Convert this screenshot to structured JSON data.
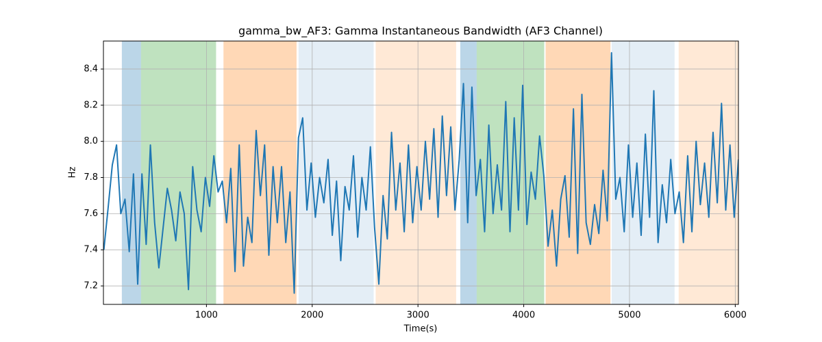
{
  "chart_data": {
    "type": "line",
    "title": "gamma_bw_AF3: Gamma Instantaneous Bandwidth (AF3 Channel)",
    "xlabel": "Time(s)",
    "ylabel": "Hz",
    "xlim": [
      26,
      6030
    ],
    "ylim": [
      7.098,
      8.555
    ],
    "xticks": [
      1000,
      2000,
      3000,
      4000,
      5000,
      6000
    ],
    "yticks": [
      7.2,
      7.4,
      7.6,
      7.8,
      {
        "value": 8,
        "label": "8.0"
      },
      8.2,
      8.4
    ],
    "grid": true,
    "spans": [
      {
        "start": 200,
        "end": 381,
        "color": "rgba(31,119,180,0.3)"
      },
      {
        "start": 381,
        "end": 1091,
        "color": "rgba(44,160,44,0.3)"
      },
      {
        "start": 1161,
        "end": 1852,
        "color": "rgba(255,127,14,0.3)"
      },
      {
        "start": 1871,
        "end": 2581,
        "color": "rgba(31,119,180,0.12)"
      },
      {
        "start": 2600,
        "end": 3361,
        "color": "rgba(255,127,14,0.17)"
      },
      {
        "start": 3400,
        "end": 3555,
        "color": "rgba(31,119,180,0.3)"
      },
      {
        "start": 3555,
        "end": 4194,
        "color": "rgba(44,160,44,0.3)"
      },
      {
        "start": 4207,
        "end": 4820,
        "color": "rgba(255,127,14,0.3)"
      },
      {
        "start": 4832,
        "end": 5426,
        "color": "rgba(31,119,180,0.12)"
      },
      {
        "start": 5465,
        "end": 6030,
        "color": "rgba(255,127,14,0.17)"
      }
    ],
    "x": [
      30,
      70,
      110,
      150,
      190,
      230,
      270,
      310,
      350,
      390,
      430,
      470,
      510,
      550,
      590,
      630,
      670,
      710,
      750,
      790,
      830,
      870,
      910,
      950,
      990,
      1030,
      1070,
      1110,
      1150,
      1190,
      1230,
      1270,
      1310,
      1350,
      1390,
      1430,
      1470,
      1510,
      1550,
      1590,
      1630,
      1670,
      1710,
      1750,
      1790,
      1830,
      1870,
      1910,
      1950,
      1990,
      2030,
      2070,
      2110,
      2150,
      2190,
      2230,
      2270,
      2310,
      2350,
      2390,
      2430,
      2470,
      2510,
      2550,
      2590,
      2630,
      2670,
      2710,
      2750,
      2790,
      2830,
      2870,
      2910,
      2950,
      2990,
      3030,
      3070,
      3110,
      3150,
      3190,
      3230,
      3270,
      3310,
      3350,
      3390,
      3430,
      3470,
      3510,
      3550,
      3590,
      3630,
      3670,
      3710,
      3750,
      3790,
      3830,
      3870,
      3910,
      3950,
      3990,
      4030,
      4070,
      4110,
      4150,
      4190,
      4230,
      4270,
      4310,
      4350,
      4390,
      4430,
      4470,
      4510,
      4550,
      4590,
      4630,
      4670,
      4710,
      4750,
      4790,
      4830,
      4870,
      4910,
      4950,
      4990,
      5030,
      5070,
      5110,
      5150,
      5190,
      5230,
      5270,
      5310,
      5350,
      5390,
      5430,
      5470,
      5510,
      5550,
      5590,
      5630,
      5670,
      5710,
      5750,
      5790,
      5830,
      5870,
      5910,
      5950,
      5990,
      6030
    ],
    "series": [
      {
        "color": "#1f77b4",
        "values": [
          7.4,
          7.63,
          7.87,
          7.98,
          7.6,
          7.68,
          7.39,
          7.82,
          7.21,
          7.82,
          7.43,
          7.98,
          7.55,
          7.3,
          7.52,
          7.74,
          7.62,
          7.45,
          7.72,
          7.6,
          7.18,
          7.86,
          7.62,
          7.5,
          7.8,
          7.64,
          7.92,
          7.72,
          7.78,
          7.55,
          7.85,
          7.28,
          7.98,
          7.31,
          7.58,
          7.44,
          8.06,
          7.7,
          7.98,
          7.37,
          7.86,
          7.55,
          7.86,
          7.44,
          7.72,
          7.16,
          8.02,
          8.13,
          7.62,
          7.88,
          7.58,
          7.8,
          7.66,
          7.9,
          7.48,
          7.78,
          7.34,
          7.75,
          7.62,
          7.92,
          7.47,
          7.8,
          7.62,
          7.97,
          7.52,
          7.21,
          7.7,
          7.46,
          8.05,
          7.62,
          7.88,
          7.5,
          7.98,
          7.55,
          7.86,
          7.62,
          8.0,
          7.68,
          8.07,
          7.58,
          8.14,
          7.7,
          8.08,
          7.62,
          7.9,
          8.32,
          7.55,
          8.3,
          7.7,
          7.9,
          7.5,
          8.09,
          7.6,
          7.87,
          7.62,
          8.22,
          7.5,
          8.13,
          7.62,
          8.31,
          7.54,
          7.83,
          7.68,
          8.03,
          7.81,
          7.42,
          7.62,
          7.31,
          7.68,
          7.81,
          7.47,
          8.18,
          7.38,
          8.26,
          7.55,
          7.43,
          7.65,
          7.49,
          7.84,
          7.56,
          8.49,
          7.68,
          7.8,
          7.5,
          7.98,
          7.58,
          7.88,
          7.48,
          8.04,
          7.58,
          8.28,
          7.44,
          7.76,
          7.55,
          7.9,
          7.6,
          7.72,
          7.44,
          7.92,
          7.5,
          8.0,
          7.65,
          7.88,
          7.58,
          8.05,
          7.66,
          8.21,
          7.62,
          7.98,
          7.58,
          7.9
        ]
      }
    ]
  }
}
